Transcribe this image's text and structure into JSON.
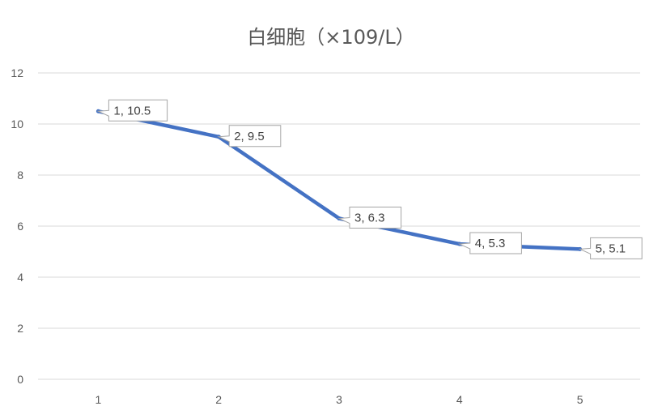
{
  "chart_data": {
    "type": "line",
    "title": "白细胞（×109/L）",
    "xlabel": "",
    "ylabel": "",
    "categories": [
      "1",
      "2",
      "3",
      "4",
      "5"
    ],
    "series": [
      {
        "values": [
          10.5,
          9.5,
          6.3,
          5.3,
          5.1
        ]
      }
    ],
    "data_labels": [
      "1, 10.5",
      "2, 9.5",
      "3, 6.3",
      "4, 5.3",
      "5, 5.1"
    ],
    "y_ticks": [
      "0",
      "2",
      "4",
      "6",
      "8",
      "10",
      "12"
    ],
    "ylim": [
      0,
      12
    ],
    "grid": true,
    "legend": "none",
    "line_color": "#4472C4",
    "grid_color": "#D9D9D9"
  }
}
